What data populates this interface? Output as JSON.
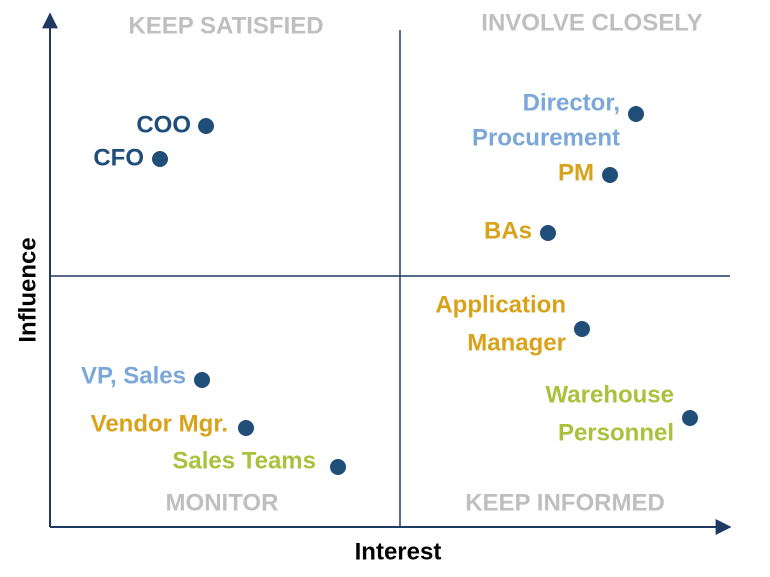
{
  "axes": {
    "x_title": "Interest",
    "y_title": "Influence"
  },
  "quadrants": {
    "top_left": "KEEP SATISFIED",
    "top_right": "INVOLVE CLOSELY",
    "bottom_left": "MONITOR",
    "bottom_right": "KEEP INFORMED"
  },
  "stakeholders": [
    {
      "lines": [
        "COO"
      ],
      "color": "#1f4e79"
    },
    {
      "lines": [
        "CFO"
      ],
      "color": "#1f4e79"
    },
    {
      "lines": [
        "Director,",
        "Procurement"
      ],
      "color": "#7ba7d9"
    },
    {
      "lines": [
        "PM"
      ],
      "color": "#d9a21b"
    },
    {
      "lines": [
        "BAs"
      ],
      "color": "#d9a21b"
    },
    {
      "lines": [
        "Application",
        "Manager"
      ],
      "color": "#d9a21b"
    },
    {
      "lines": [
        "VP, Sales"
      ],
      "color": "#7ba7d9"
    },
    {
      "lines": [
        "Vendor Mgr."
      ],
      "color": "#d9a21b"
    },
    {
      "lines": [
        "Sales Teams"
      ],
      "color": "#a8c23c"
    },
    {
      "lines": [
        "Warehouse",
        "Personnel"
      ],
      "color": "#a8c23c"
    }
  ]
}
